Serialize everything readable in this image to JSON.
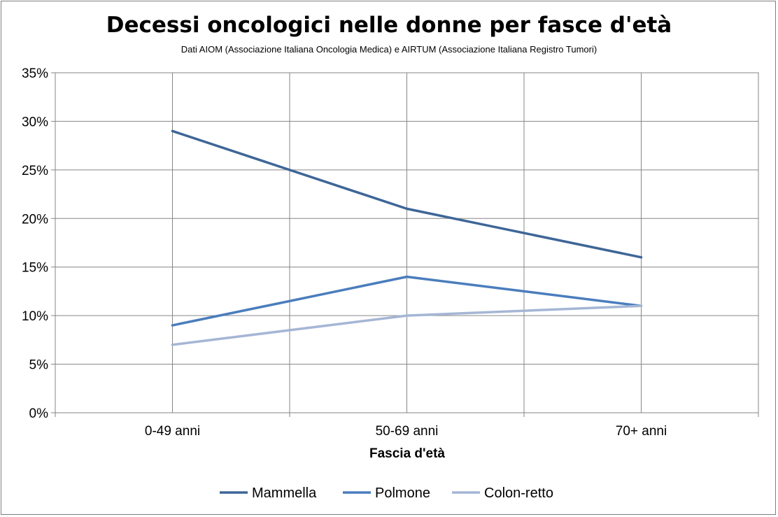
{
  "chart_data": {
    "type": "line",
    "title": "Decessi oncologici nelle donne per fasce d'età",
    "subtitle": "Dati AIOM (Associazione Italiana Oncologia Medica) e AIRTUM (Associazione Italiana Registro Tumori)",
    "xlabel": "Fascia d'età",
    "ylabel": "",
    "categories": [
      "0-49 anni",
      "50-69 anni",
      "70+ anni"
    ],
    "y_ticks": [
      "0%",
      "5%",
      "10%",
      "15%",
      "20%",
      "25%",
      "30%",
      "35%"
    ],
    "ylim": [
      0,
      35
    ],
    "grid": true,
    "legend_position": "bottom",
    "series": [
      {
        "name": "Mammella",
        "values": [
          29,
          21,
          16
        ],
        "color": "#3e6697"
      },
      {
        "name": "Polmone",
        "values": [
          9,
          14,
          11
        ],
        "color": "#4a7dbd"
      },
      {
        "name": "Colon-retto",
        "values": [
          7,
          10,
          11
        ],
        "color": "#a5b6d5"
      }
    ]
  }
}
